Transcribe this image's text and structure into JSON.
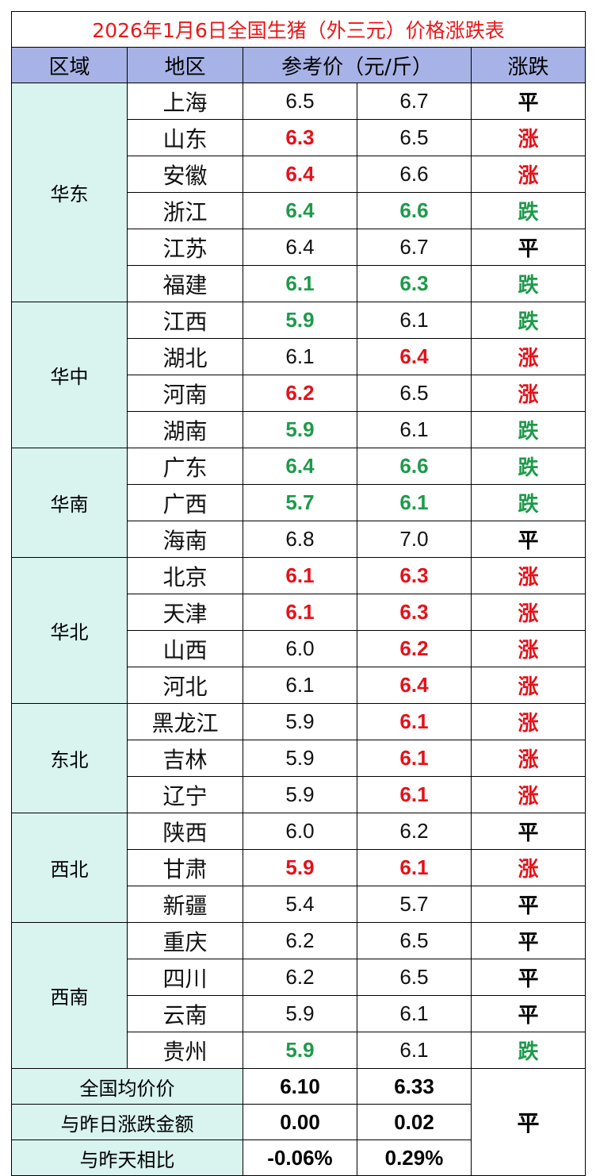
{
  "title": "2026年1月6日全国生猪（外三元）价格涨跌表",
  "headers": {
    "region": "区域",
    "area": "地区",
    "price": "参考价（元/斤）",
    "trend": "涨跌"
  },
  "colors": {
    "up": "#e3121a",
    "down": "#1e9a4b",
    "flat": "#000000",
    "header_bg": "#a7b3e6",
    "region_bg": "#d9f3ef"
  },
  "groups": [
    {
      "region": "华东",
      "rows": [
        {
          "area": "上海",
          "low": "6.5",
          "low_dir": "flat",
          "high": "6.7",
          "high_dir": "flat",
          "trend": "平",
          "trend_dir": "flat"
        },
        {
          "area": "山东",
          "low": "6.3",
          "low_dir": "up",
          "high": "6.5",
          "high_dir": "flat",
          "trend": "涨",
          "trend_dir": "up"
        },
        {
          "area": "安徽",
          "low": "6.4",
          "low_dir": "up",
          "high": "6.6",
          "high_dir": "flat",
          "trend": "涨",
          "trend_dir": "up"
        },
        {
          "area": "浙江",
          "low": "6.4",
          "low_dir": "down",
          "high": "6.6",
          "high_dir": "down",
          "trend": "跌",
          "trend_dir": "down"
        },
        {
          "area": "江苏",
          "low": "6.4",
          "low_dir": "flat",
          "high": "6.7",
          "high_dir": "flat",
          "trend": "平",
          "trend_dir": "flat"
        },
        {
          "area": "福建",
          "low": "6.1",
          "low_dir": "down",
          "high": "6.3",
          "high_dir": "down",
          "trend": "跌",
          "trend_dir": "down"
        }
      ]
    },
    {
      "region": "华中",
      "rows": [
        {
          "area": "江西",
          "low": "5.9",
          "low_dir": "down",
          "high": "6.1",
          "high_dir": "flat",
          "trend": "跌",
          "trend_dir": "down"
        },
        {
          "area": "湖北",
          "low": "6.1",
          "low_dir": "flat",
          "high": "6.4",
          "high_dir": "up",
          "trend": "涨",
          "trend_dir": "up"
        },
        {
          "area": "河南",
          "low": "6.2",
          "low_dir": "up",
          "high": "6.5",
          "high_dir": "flat",
          "trend": "涨",
          "trend_dir": "up"
        },
        {
          "area": "湖南",
          "low": "5.9",
          "low_dir": "down",
          "high": "6.1",
          "high_dir": "flat",
          "trend": "跌",
          "trend_dir": "down"
        }
      ]
    },
    {
      "region": "华南",
      "rows": [
        {
          "area": "广东",
          "low": "6.4",
          "low_dir": "down",
          "high": "6.6",
          "high_dir": "down",
          "trend": "跌",
          "trend_dir": "down"
        },
        {
          "area": "广西",
          "low": "5.7",
          "low_dir": "down",
          "high": "6.1",
          "high_dir": "down",
          "trend": "跌",
          "trend_dir": "down"
        },
        {
          "area": "海南",
          "low": "6.8",
          "low_dir": "flat",
          "high": "7.0",
          "high_dir": "flat",
          "trend": "平",
          "trend_dir": "flat"
        }
      ]
    },
    {
      "region": "华北",
      "rows": [
        {
          "area": "北京",
          "low": "6.1",
          "low_dir": "up",
          "high": "6.3",
          "high_dir": "up",
          "trend": "涨",
          "trend_dir": "up"
        },
        {
          "area": "天津",
          "low": "6.1",
          "low_dir": "up",
          "high": "6.3",
          "high_dir": "up",
          "trend": "涨",
          "trend_dir": "up"
        },
        {
          "area": "山西",
          "low": "6.0",
          "low_dir": "flat",
          "high": "6.2",
          "high_dir": "up",
          "trend": "涨",
          "trend_dir": "up"
        },
        {
          "area": "河北",
          "low": "6.1",
          "low_dir": "flat",
          "high": "6.4",
          "high_dir": "up",
          "trend": "涨",
          "trend_dir": "up"
        }
      ]
    },
    {
      "region": "东北",
      "rows": [
        {
          "area": "黑龙江",
          "low": "5.9",
          "low_dir": "flat",
          "high": "6.1",
          "high_dir": "up",
          "trend": "涨",
          "trend_dir": "up"
        },
        {
          "area": "吉林",
          "low": "5.9",
          "low_dir": "flat",
          "high": "6.1",
          "high_dir": "up",
          "trend": "涨",
          "trend_dir": "up"
        },
        {
          "area": "辽宁",
          "low": "5.9",
          "low_dir": "flat",
          "high": "6.1",
          "high_dir": "up",
          "trend": "涨",
          "trend_dir": "up"
        }
      ]
    },
    {
      "region": "西北",
      "rows": [
        {
          "area": "陕西",
          "low": "6.0",
          "low_dir": "flat",
          "high": "6.2",
          "high_dir": "flat",
          "trend": "平",
          "trend_dir": "flat"
        },
        {
          "area": "甘肃",
          "low": "5.9",
          "low_dir": "up",
          "high": "6.1",
          "high_dir": "up",
          "trend": "涨",
          "trend_dir": "up"
        },
        {
          "area": "新疆",
          "low": "5.4",
          "low_dir": "flat",
          "high": "5.7",
          "high_dir": "flat",
          "trend": "平",
          "trend_dir": "flat"
        }
      ]
    },
    {
      "region": "西南",
      "rows": [
        {
          "area": "重庆",
          "low": "6.2",
          "low_dir": "flat",
          "high": "6.5",
          "high_dir": "flat",
          "trend": "平",
          "trend_dir": "flat"
        },
        {
          "area": "四川",
          "low": "6.2",
          "low_dir": "flat",
          "high": "6.5",
          "high_dir": "flat",
          "trend": "平",
          "trend_dir": "flat"
        },
        {
          "area": "云南",
          "low": "5.9",
          "low_dir": "flat",
          "high": "6.1",
          "high_dir": "flat",
          "trend": "平",
          "trend_dir": "flat"
        },
        {
          "area": "贵州",
          "low": "5.9",
          "low_dir": "down",
          "high": "6.1",
          "high_dir": "flat",
          "trend": "跌",
          "trend_dir": "down"
        }
      ]
    }
  ],
  "summary": {
    "avg_label": "全国均价价",
    "avg_low": "6.10",
    "avg_high": "6.33",
    "change_label": "与昨日涨跌金额",
    "change_low": "0.00",
    "change_high": "0.02",
    "pct_label": "与昨天相比",
    "pct_low": "-0.06%",
    "pct_high": "0.29%",
    "trend": "平"
  }
}
